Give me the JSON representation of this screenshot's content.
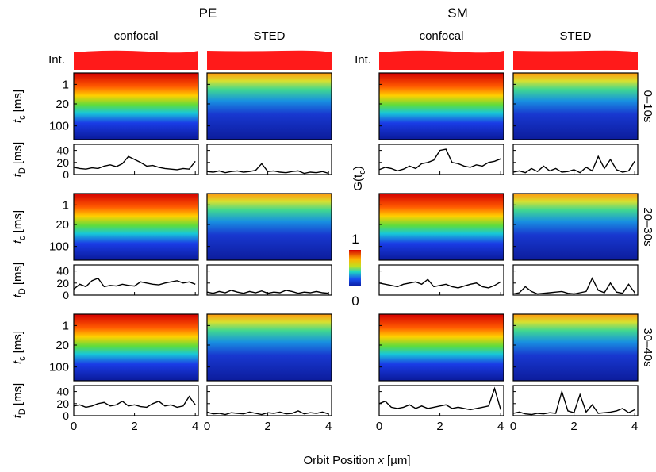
{
  "groups": [
    {
      "title": "PE",
      "columns": [
        {
          "title": "confocal"
        },
        {
          "title": "STED"
        }
      ]
    },
    {
      "title": "SM",
      "columns": [
        {
          "title": "confocal"
        },
        {
          "title": "STED"
        }
      ]
    }
  ],
  "int_label": "Int.",
  "rows": [
    {
      "label": "0–10s",
      "traces": [
        [
          12,
          10,
          9,
          11,
          10,
          14,
          16,
          13,
          18,
          30,
          25,
          20,
          14,
          15,
          12,
          10,
          9,
          8,
          10,
          9,
          22
        ],
        [
          5,
          4,
          6,
          3,
          5,
          6,
          4,
          5,
          7,
          18,
          5,
          6,
          4,
          3,
          5,
          6,
          2,
          4,
          3,
          5,
          2
        ],
        [
          8,
          12,
          10,
          6,
          9,
          14,
          10,
          18,
          20,
          24,
          40,
          42,
          20,
          18,
          14,
          12,
          16,
          14,
          20,
          22,
          26
        ],
        [
          4,
          6,
          3,
          10,
          5,
          14,
          6,
          10,
          4,
          5,
          8,
          3,
          12,
          6,
          30,
          10,
          25,
          8,
          4,
          6,
          22
        ]
      ]
    },
    {
      "label": "20–30s",
      "traces": [
        [
          10,
          18,
          14,
          24,
          28,
          14,
          16,
          15,
          18,
          16,
          15,
          22,
          20,
          18,
          17,
          20,
          22,
          24,
          20,
          22,
          18
        ],
        [
          5,
          3,
          6,
          4,
          8,
          5,
          3,
          6,
          4,
          7,
          3,
          5,
          4,
          8,
          6,
          3,
          5,
          4,
          6,
          4,
          3
        ],
        [
          20,
          18,
          16,
          14,
          18,
          20,
          22,
          18,
          26,
          14,
          16,
          18,
          14,
          12,
          15,
          18,
          20,
          14,
          12,
          16,
          22
        ],
        [
          2,
          4,
          14,
          6,
          2,
          3,
          4,
          5,
          6,
          3,
          2,
          4,
          6,
          28,
          8,
          4,
          20,
          5,
          3,
          18,
          4
        ]
      ]
    },
    {
      "label": "30–40s",
      "traces": [
        [
          16,
          18,
          14,
          16,
          20,
          22,
          16,
          18,
          24,
          16,
          18,
          15,
          14,
          20,
          24,
          16,
          18,
          14,
          16,
          32,
          18
        ],
        [
          6,
          3,
          4,
          2,
          5,
          4,
          3,
          6,
          4,
          2,
          5,
          4,
          6,
          3,
          4,
          8,
          3,
          5,
          4,
          6,
          3
        ],
        [
          20,
          24,
          14,
          12,
          14,
          18,
          12,
          16,
          12,
          14,
          16,
          18,
          12,
          14,
          12,
          10,
          12,
          14,
          16,
          45,
          10
        ],
        [
          4,
          6,
          3,
          2,
          4,
          3,
          5,
          4,
          40,
          8,
          5,
          35,
          6,
          18,
          4,
          5,
          6,
          8,
          12,
          5,
          10
        ]
      ]
    }
  ],
  "tc_axis": {
    "label": {
      "main": "t",
      "sub": "c",
      "unit": "[ms]"
    },
    "ylim": [
      0,
      200
    ],
    "scale": "cbrt",
    "yticks": [
      1,
      20,
      100
    ]
  },
  "td_axis": {
    "label": {
      "main": "t",
      "sub": "D",
      "unit": "[ms]"
    },
    "ylim": [
      0,
      50
    ],
    "yticks": [
      0,
      20,
      40
    ]
  },
  "x_axis": {
    "label": {
      "pre": "Orbit Position",
      "var": "x",
      "unit": "[µm]"
    },
    "xlim": [
      0,
      4.1
    ],
    "xticks": [
      0,
      2,
      4
    ],
    "x": [
      0,
      0.2,
      0.4,
      0.6,
      0.8,
      1,
      1.2,
      1.4,
      1.6,
      1.8,
      2,
      2.2,
      2.4,
      2.6,
      2.8,
      3,
      3.2,
      3.4,
      3.6,
      3.8,
      4
    ]
  },
  "colorbar": {
    "label": {
      "pre": "G(t",
      "sub": "c",
      "post": ")"
    },
    "lim": [
      0,
      1
    ],
    "ticks": [
      0,
      1
    ]
  }
}
